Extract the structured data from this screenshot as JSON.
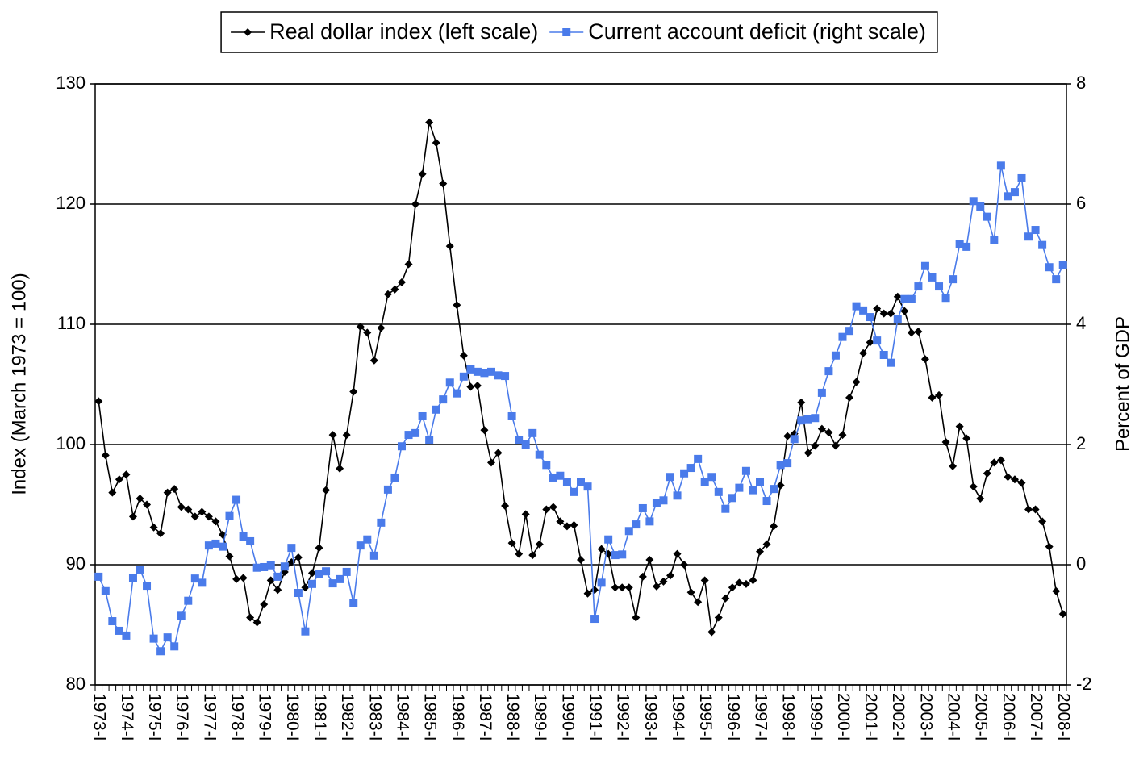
{
  "chart_data": {
    "type": "line",
    "y_label": "Index (March 1973 = 100)",
    "y2_label": "Percent of GDP",
    "categories": [
      "1973-I",
      null,
      null,
      null,
      "1974-I",
      null,
      null,
      null,
      "1975-I",
      null,
      null,
      null,
      "1976-I",
      null,
      null,
      null,
      "1977-I",
      null,
      null,
      null,
      "1978-I",
      null,
      null,
      null,
      "1979-I",
      null,
      null,
      null,
      "1980-I",
      null,
      null,
      null,
      "1981-I",
      null,
      null,
      null,
      "1982-I",
      null,
      null,
      null,
      "1983-I",
      null,
      null,
      null,
      "1984-I",
      null,
      null,
      null,
      "1985-I",
      null,
      null,
      null,
      "1986-I",
      null,
      null,
      null,
      "1987-I",
      null,
      null,
      null,
      "1988-I",
      null,
      null,
      null,
      "1989-I",
      null,
      null,
      null,
      "1990-I",
      null,
      null,
      null,
      "1991-I",
      null,
      null,
      null,
      "1992-I",
      null,
      null,
      null,
      "1993-I",
      null,
      null,
      null,
      "1994-I",
      null,
      null,
      null,
      "1995-I",
      null,
      null,
      null,
      "1996-I",
      null,
      null,
      null,
      "1997-I",
      null,
      null,
      null,
      "1998-I",
      null,
      null,
      null,
      "1999-I",
      null,
      null,
      null,
      "2000-I",
      null,
      null,
      null,
      "2001-I",
      null,
      null,
      null,
      "2002-I",
      null,
      null,
      null,
      "2003-I",
      null,
      null,
      null,
      "2004-I",
      null,
      null,
      null,
      "2005-I",
      null,
      null,
      null,
      "2006-I",
      null,
      null,
      null,
      "2007-I",
      null,
      null,
      null,
      "2008-I"
    ],
    "series": [
      {
        "name": "Real dollar index (left scale)",
        "color": "#000000",
        "marker": "diamond",
        "axis": "y",
        "values": [
          103.6,
          99.1,
          96.0,
          97.1,
          97.5,
          94.0,
          95.5,
          95.0,
          93.1,
          92.6,
          96.0,
          96.3,
          94.8,
          94.6,
          94.0,
          94.4,
          94.0,
          93.6,
          92.5,
          90.7,
          88.8,
          88.9,
          85.6,
          85.2,
          86.7,
          88.7,
          87.9,
          89.4,
          90.2,
          90.6,
          88.1,
          89.3,
          91.4,
          96.2,
          100.8,
          98.0,
          100.8,
          104.4,
          109.8,
          109.3,
          107.0,
          109.7,
          112.5,
          112.9,
          113.5,
          115.0,
          120.0,
          122.5,
          126.8,
          125.1,
          121.7,
          116.5,
          111.6,
          107.4,
          104.8,
          104.9,
          101.2,
          98.5,
          99.3,
          94.9,
          91.8,
          90.9,
          94.2,
          90.8,
          91.7,
          94.6,
          94.8,
          93.6,
          93.2,
          93.3,
          90.4,
          87.6,
          87.9,
          91.3,
          90.9,
          88.1,
          88.1,
          88.1,
          85.6,
          89.0,
          90.4,
          88.2,
          88.6,
          89.1,
          90.9,
          90.0,
          87.7,
          86.9,
          88.7,
          84.4,
          85.6,
          87.2,
          88.1,
          88.5,
          88.4,
          88.7,
          91.1,
          91.7,
          93.2,
          96.6,
          100.7,
          100.9,
          103.5,
          99.3,
          99.9,
          101.3,
          101.0,
          99.9,
          100.8,
          103.9,
          105.2,
          107.6,
          108.5,
          111.3,
          110.9,
          110.9,
          112.3,
          111.1,
          109.3,
          109.4,
          107.1,
          103.9,
          104.1,
          100.2,
          98.2,
          101.5,
          100.5,
          96.5,
          95.5,
          97.6,
          98.5,
          98.7,
          97.3,
          97.1,
          96.8,
          94.6,
          94.6,
          93.6,
          91.5,
          87.8,
          85.9
        ]
      },
      {
        "name": "Current account deficit (right scale)",
        "color": "#4a7bea",
        "marker": "square",
        "axis": "y2",
        "values": [
          -0.2,
          -0.44,
          -0.94,
          -1.1,
          -1.18,
          -0.22,
          -0.08,
          -0.35,
          -1.23,
          -1.44,
          -1.21,
          -1.36,
          -0.85,
          -0.6,
          -0.23,
          -0.3,
          0.32,
          0.35,
          0.3,
          0.81,
          1.08,
          0.47,
          0.39,
          -0.05,
          -0.04,
          -0.01,
          -0.2,
          -0.03,
          0.28,
          -0.47,
          -1.11,
          -0.32,
          -0.15,
          -0.11,
          -0.31,
          -0.24,
          -0.12,
          -0.64,
          0.32,
          0.42,
          0.15,
          0.7,
          1.25,
          1.45,
          1.97,
          2.16,
          2.19,
          2.47,
          2.08,
          2.58,
          2.75,
          3.03,
          2.85,
          3.13,
          3.25,
          3.21,
          3.19,
          3.21,
          3.15,
          3.14,
          2.47,
          2.08,
          2.0,
          2.19,
          1.83,
          1.66,
          1.45,
          1.48,
          1.38,
          1.21,
          1.38,
          1.3,
          -0.9,
          -0.3,
          0.42,
          0.16,
          0.17,
          0.56,
          0.67,
          0.94,
          0.72,
          1.03,
          1.07,
          1.46,
          1.15,
          1.52,
          1.61,
          1.76,
          1.38,
          1.46,
          1.21,
          0.93,
          1.11,
          1.28,
          1.56,
          1.24,
          1.37,
          1.06,
          1.26,
          1.66,
          1.69,
          2.09,
          2.4,
          2.42,
          2.44,
          2.86,
          3.22,
          3.48,
          3.79,
          3.89,
          4.3,
          4.23,
          4.12,
          3.73,
          3.49,
          3.36,
          4.08,
          4.42,
          4.42,
          4.63,
          4.97,
          4.78,
          4.63,
          4.44,
          4.75,
          5.33,
          5.29,
          6.05,
          5.96,
          5.79,
          5.4,
          6.64,
          6.13,
          6.2,
          6.43,
          5.46,
          5.57,
          5.32,
          4.95,
          4.75,
          4.98
        ]
      }
    ],
    "ylim": [
      80,
      130
    ],
    "yticks": [
      80,
      90,
      100,
      110,
      120,
      130
    ],
    "y2lim": [
      -2,
      8
    ],
    "y2ticks": [
      -2,
      0,
      2,
      4,
      6,
      8
    ],
    "grid": true,
    "legend": "top"
  }
}
